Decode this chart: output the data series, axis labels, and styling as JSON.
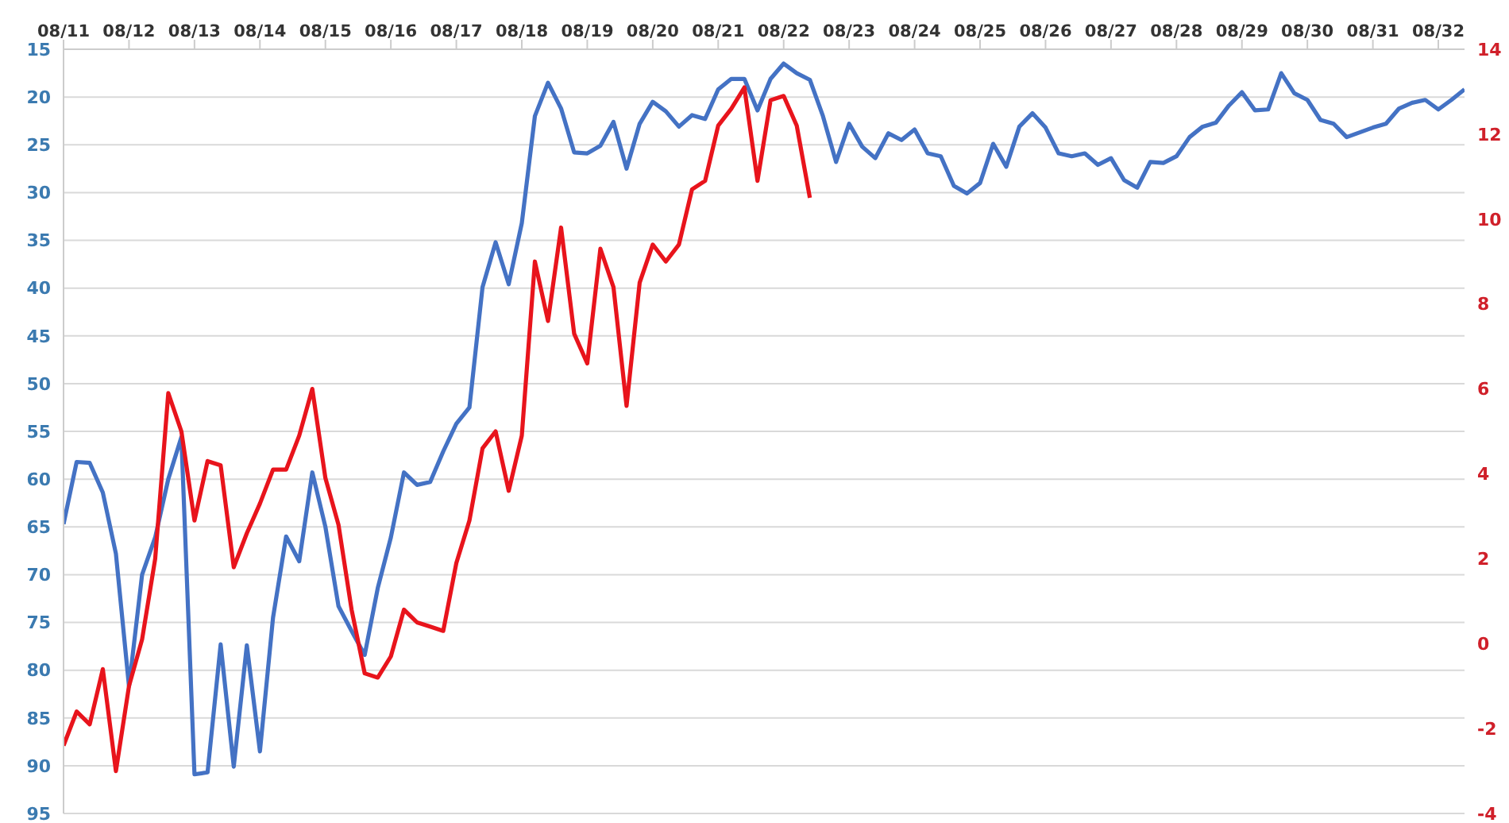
{
  "chart_data": {
    "type": "line",
    "categories": [
      "08/11",
      null,
      null,
      null,
      null,
      "08/12",
      null,
      null,
      null,
      null,
      "08/13",
      null,
      null,
      null,
      null,
      "08/14",
      null,
      null,
      null,
      null,
      "08/15",
      null,
      null,
      null,
      null,
      "08/16",
      null,
      null,
      null,
      null,
      "08/17",
      null,
      null,
      null,
      null,
      "08/18",
      null,
      null,
      null,
      null,
      "08/19",
      null,
      null,
      null,
      null,
      "08/20",
      null,
      null,
      null,
      null,
      "08/21",
      null,
      null,
      null,
      null,
      "08/22",
      null,
      null,
      null,
      null,
      "08/23",
      null,
      null,
      null,
      null,
      "08/24",
      null,
      null,
      null,
      null,
      "08/25",
      null,
      null,
      null,
      null,
      "08/26",
      null,
      null,
      null,
      null,
      "08/27",
      null,
      null,
      null,
      null,
      "08/28",
      null,
      null,
      null,
      null,
      "08/29",
      null,
      null,
      null,
      null,
      "08/30",
      null,
      null,
      null,
      null,
      "08/31",
      null,
      null,
      null,
      null,
      "08/32",
      null,
      null
    ],
    "ylim": [
      95,
      15
    ],
    "yticks": [
      15,
      20,
      25,
      30,
      35,
      40,
      45,
      50,
      55,
      60,
      65,
      70,
      75,
      80,
      85,
      90,
      95
    ],
    "y2lim": [
      -4,
      14
    ],
    "y2ticks": [
      -4,
      -2,
      0,
      2,
      4,
      6,
      8,
      10,
      12,
      14
    ],
    "grid": "y",
    "series": [
      {
        "color": "#4472c4",
        "values": [
          64.7,
          58.2,
          58.3,
          61.4,
          67.8,
          81.7,
          70.0,
          66.1,
          60.0,
          55.6,
          90.9,
          90.7,
          77.3,
          90.1,
          77.4,
          88.5,
          74.5,
          66.0,
          68.6,
          59.3,
          65.0,
          73.3,
          75.9,
          78.4,
          71.4,
          66.1,
          59.3,
          60.6,
          60.3,
          57.1,
          54.2,
          52.5,
          39.9,
          35.2,
          39.6,
          33.2,
          22.0,
          18.5,
          21.2,
          25.8,
          25.9,
          25.1,
          22.6,
          27.5,
          22.8,
          20.5,
          21.5,
          23.1,
          21.9,
          22.3,
          19.2,
          18.1,
          18.1,
          21.4,
          18.1,
          16.5,
          17.5,
          18.2,
          22.0,
          26.8,
          22.8,
          25.2,
          26.4,
          23.8,
          24.5,
          23.4,
          25.9,
          26.2,
          29.3,
          30.1,
          29.0,
          24.9,
          27.3,
          23.1,
          21.7,
          23.2,
          25.9,
          26.2,
          25.9,
          27.1,
          26.4,
          28.7,
          29.5,
          26.8,
          26.9,
          26.2,
          24.2,
          23.1,
          22.7,
          20.9,
          19.5,
          21.4,
          21.3,
          17.5,
          19.6,
          20.3,
          22.4,
          22.8,
          24.2,
          23.7,
          23.2,
          22.8,
          21.2,
          20.6,
          20.3,
          21.3,
          20.3,
          19.2
        ]
      },
      {
        "color": "#e8141c",
        "axis": "y2",
        "values": [
          -2.4,
          -1.6,
          -1.9,
          -0.6,
          -3.0,
          -1.0,
          0.1,
          2.0,
          5.9,
          5.0,
          2.9,
          4.3,
          4.2,
          1.8,
          2.6,
          3.3,
          4.1,
          4.1,
          4.9,
          6.0,
          3.9,
          2.8,
          0.8,
          -0.7,
          -0.8,
          -0.3,
          0.8,
          0.5,
          0.4,
          0.3,
          1.9,
          2.9,
          4.6,
          5.0,
          3.6,
          4.9,
          9.0,
          7.6,
          9.8,
          7.3,
          6.6,
          9.3,
          8.4,
          5.6,
          8.5,
          9.4,
          9.0,
          9.4,
          10.7,
          10.9,
          12.2,
          12.6,
          13.1,
          10.9,
          12.8,
          12.9,
          12.2,
          10.5,
          null,
          null,
          null,
          null,
          null,
          null,
          null,
          null,
          null,
          null,
          null,
          null,
          null,
          null,
          null,
          null,
          null,
          null,
          null,
          null,
          null,
          null,
          null,
          null,
          null,
          null,
          null,
          null,
          null,
          null,
          null,
          null,
          null,
          null,
          null,
          null,
          null,
          null,
          null,
          null,
          null,
          null,
          null,
          null,
          null,
          null,
          null,
          null,
          null,
          null
        ]
      }
    ]
  }
}
